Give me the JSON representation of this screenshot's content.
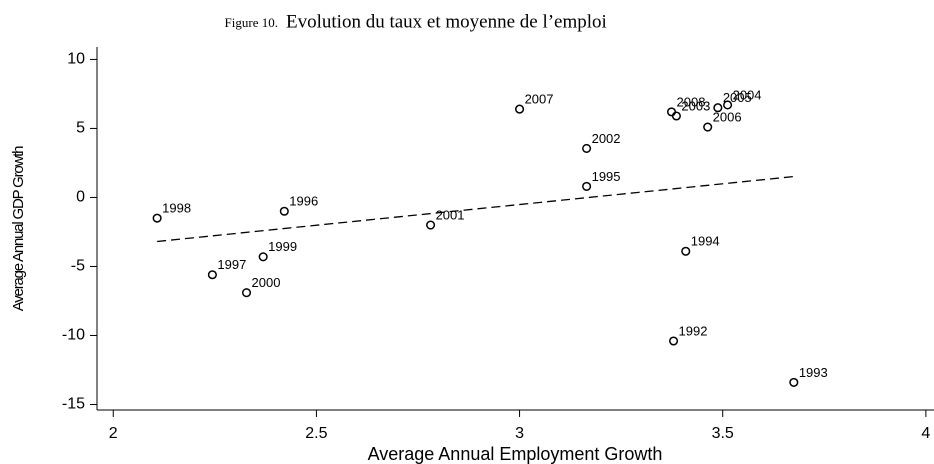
{
  "chart_data": {
    "type": "scatter",
    "figure_label": "Figure 10.",
    "title": "Evolution du taux et moyenne de l’emploi",
    "xlabel": "Average Annual Employment Growth",
    "ylabel": "Average Annual GDP Growth",
    "xlim": [
      1.96,
      4.02
    ],
    "ylim": [
      -15.4,
      10.9
    ],
    "xticks": [
      2,
      2.5,
      3,
      3.5,
      4
    ],
    "yticks": [
      10,
      5,
      0,
      -5,
      -10,
      -15
    ],
    "series": [
      {
        "color": "#000000",
        "labels": [
          "1998",
          "1996",
          "1997",
          "1999",
          "2000",
          "2001",
          "2007",
          "2008",
          "2003",
          "2002",
          "1995",
          "2006",
          "2005",
          "2004",
          "1994",
          "1992",
          "1993"
        ],
        "x": [
          2.108,
          2.421,
          2.244,
          2.369,
          2.328,
          2.781,
          3.0,
          3.374,
          3.386,
          3.165,
          3.165,
          3.463,
          3.488,
          3.512,
          3.409,
          3.379,
          3.675
        ],
        "values": [
          -1.5,
          -1.0,
          -5.6,
          -4.3,
          -6.9,
          -2.0,
          6.4,
          6.2,
          5.9,
          3.55,
          0.8,
          5.1,
          6.5,
          6.7,
          -3.9,
          -10.4,
          -13.4
        ]
      }
    ],
    "fit": {
      "x": [
        2.108,
        3.677
      ],
      "values": [
        -3.19,
        1.52
      ]
    }
  }
}
